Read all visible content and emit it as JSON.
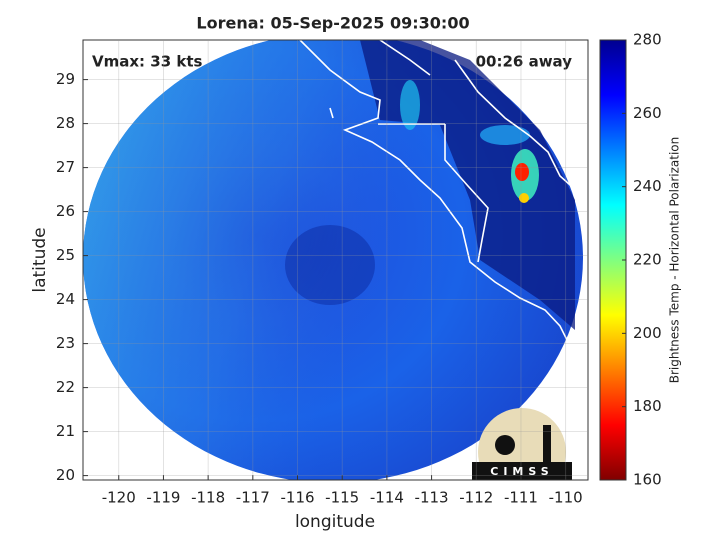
{
  "chart_data": {
    "type": "map",
    "title": "Lorena: 05-Sep-2025 09:30:00",
    "x_label": "longitude",
    "y_label": "latitude",
    "annotations": [
      "Vmax: 33 kts",
      "00:26 away"
    ],
    "xlim": [
      -120.8,
      -109.5
    ],
    "ylim": [
      19.9,
      29.9
    ],
    "xticks": [
      -120,
      -119,
      -118,
      -117,
      -116,
      -115,
      -114,
      -113,
      -112,
      -111,
      -110
    ],
    "yticks": [
      20,
      21,
      22,
      23,
      24,
      25,
      26,
      27,
      28,
      29
    ],
    "grid": true,
    "colorbar": {
      "label": "Brightness Temp - Horizontal Polarization",
      "lim": [
        160,
        280
      ],
      "ticks": [
        160,
        180,
        200,
        220,
        240,
        260,
        280
      ],
      "colormap": [
        "#800000",
        "#ff0000",
        "#ff8000",
        "#ffff00",
        "#80ff80",
        "#00ffff",
        "#0080ff",
        "#0000ff",
        "#000090"
      ]
    },
    "logo": "CIMSS"
  }
}
